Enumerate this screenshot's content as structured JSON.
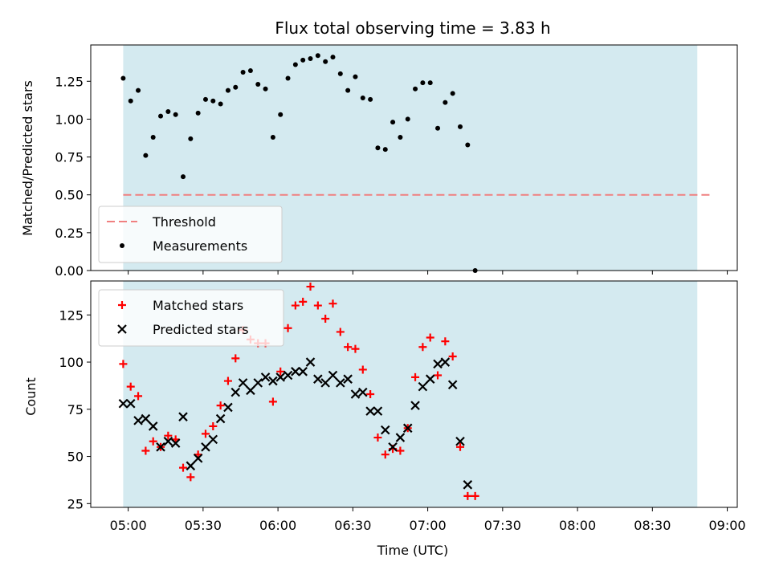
{
  "chart_data": [
    {
      "type": "scatter",
      "title": "Flux total observing time = 3.83 h",
      "xlabel": "",
      "ylabel": "Matched/Predicted stars",
      "x_axis": "time (UTC)",
      "xlim": [
        "04:45",
        "09:04"
      ],
      "ylim": [
        0,
        1.49
      ],
      "yticks": [
        0.0,
        0.25,
        0.5,
        0.75,
        1.0,
        1.25
      ],
      "ytick_labels": [
        "0.00",
        "0.25",
        "0.50",
        "0.75",
        "1.00",
        "1.25"
      ],
      "shaded_span": {
        "start": "04:58",
        "end": "08:48",
        "color": "#d4eaf0"
      },
      "threshold": {
        "name": "Threshold",
        "value": 0.5,
        "x_start": "04:58",
        "x_end": "08:53",
        "color": "#f08080"
      },
      "legend": {
        "placement": "lower-left",
        "entries": [
          "Threshold",
          "Measurements"
        ]
      },
      "series": [
        {
          "name": "Measurements",
          "marker": "dot",
          "color": "#000000",
          "points": [
            [
              "04:58",
              1.27
            ],
            [
              "05:01",
              1.12
            ],
            [
              "05:04",
              1.19
            ],
            [
              "05:07",
              0.76
            ],
            [
              "05:10",
              0.88
            ],
            [
              "05:13",
              1.02
            ],
            [
              "05:16",
              1.05
            ],
            [
              "05:19",
              1.03
            ],
            [
              "05:22",
              0.62
            ],
            [
              "05:25",
              0.87
            ],
            [
              "05:28",
              1.04
            ],
            [
              "05:31",
              1.13
            ],
            [
              "05:34",
              1.12
            ],
            [
              "05:37",
              1.1
            ],
            [
              "05:40",
              1.19
            ],
            [
              "05:43",
              1.21
            ],
            [
              "05:46",
              1.31
            ],
            [
              "05:49",
              1.32
            ],
            [
              "05:52",
              1.23
            ],
            [
              "05:55",
              1.2
            ],
            [
              "05:58",
              0.88
            ],
            [
              "06:01",
              1.03
            ],
            [
              "06:04",
              1.27
            ],
            [
              "06:07",
              1.36
            ],
            [
              "06:10",
              1.39
            ],
            [
              "06:13",
              1.4
            ],
            [
              "06:16",
              1.42
            ],
            [
              "06:19",
              1.38
            ],
            [
              "06:22",
              1.41
            ],
            [
              "06:25",
              1.3
            ],
            [
              "06:28",
              1.19
            ],
            [
              "06:31",
              1.28
            ],
            [
              "06:34",
              1.14
            ],
            [
              "06:37",
              1.13
            ],
            [
              "06:40",
              0.81
            ],
            [
              "06:43",
              0.8
            ],
            [
              "06:46",
              0.98
            ],
            [
              "06:49",
              0.88
            ],
            [
              "06:52",
              1.0
            ],
            [
              "06:55",
              1.2
            ],
            [
              "06:58",
              1.24
            ],
            [
              "07:01",
              1.24
            ],
            [
              "07:04",
              0.94
            ],
            [
              "07:07",
              1.11
            ],
            [
              "07:10",
              1.17
            ],
            [
              "07:13",
              0.95
            ],
            [
              "07:16",
              0.83
            ],
            [
              "07:19",
              0.0
            ]
          ]
        }
      ]
    },
    {
      "type": "scatter",
      "title": "",
      "xlabel": "Time (UTC)",
      "ylabel": "Count",
      "x_axis": "time (UTC)",
      "xlim": [
        "04:45",
        "09:04"
      ],
      "ylim": [
        23,
        143
      ],
      "yticks": [
        25,
        50,
        75,
        100,
        125
      ],
      "ytick_labels": [
        "25",
        "50",
        "75",
        "100",
        "125"
      ],
      "xticks": [
        "05:00",
        "05:30",
        "06:00",
        "06:30",
        "07:00",
        "07:30",
        "08:00",
        "08:30",
        "09:00"
      ],
      "xtick_labels": [
        "05:00",
        "05:30",
        "06:00",
        "06:30",
        "07:00",
        "07:30",
        "08:00",
        "08:30",
        "09:00"
      ],
      "shaded_span": {
        "start": "04:58",
        "end": "08:48",
        "color": "#d4eaf0"
      },
      "legend": {
        "placement": "upper-left",
        "entries": [
          "Matched stars",
          "Predicted stars"
        ]
      },
      "series": [
        {
          "name": "Matched stars",
          "marker": "plus",
          "color": "#ff0000",
          "points": [
            [
              "04:58",
              99
            ],
            [
              "05:01",
              87
            ],
            [
              "05:04",
              82
            ],
            [
              "05:07",
              53
            ],
            [
              "05:10",
              58
            ],
            [
              "05:13",
              55
            ],
            [
              "05:16",
              61
            ],
            [
              "05:19",
              59
            ],
            [
              "05:22",
              44
            ],
            [
              "05:25",
              39
            ],
            [
              "05:28",
              51
            ],
            [
              "05:31",
              62
            ],
            [
              "05:34",
              66
            ],
            [
              "05:37",
              77
            ],
            [
              "05:40",
              90
            ],
            [
              "05:43",
              102
            ],
            [
              "05:46",
              117
            ],
            [
              "05:49",
              112
            ],
            [
              "05:52",
              110
            ],
            [
              "05:55",
              110
            ],
            [
              "05:58",
              79
            ],
            [
              "06:01",
              95
            ],
            [
              "06:04",
              118
            ],
            [
              "06:07",
              130
            ],
            [
              "06:10",
              132
            ],
            [
              "06:13",
              140
            ],
            [
              "06:16",
              130
            ],
            [
              "06:19",
              123
            ],
            [
              "06:22",
              131
            ],
            [
              "06:25",
              116
            ],
            [
              "06:28",
              108
            ],
            [
              "06:31",
              107
            ],
            [
              "06:34",
              96
            ],
            [
              "06:37",
              83
            ],
            [
              "06:40",
              60
            ],
            [
              "06:43",
              51
            ],
            [
              "06:46",
              54
            ],
            [
              "06:49",
              53
            ],
            [
              "06:52",
              65
            ],
            [
              "06:55",
              92
            ],
            [
              "06:58",
              108
            ],
            [
              "07:01",
              113
            ],
            [
              "07:04",
              93
            ],
            [
              "07:07",
              111
            ],
            [
              "07:10",
              103
            ],
            [
              "07:13",
              55
            ],
            [
              "07:16",
              29
            ],
            [
              "07:19",
              29
            ]
          ]
        },
        {
          "name": "Predicted stars",
          "marker": "x",
          "color": "#000000",
          "points": [
            [
              "04:58",
              78
            ],
            [
              "05:01",
              78
            ],
            [
              "05:04",
              69
            ],
            [
              "05:07",
              70
            ],
            [
              "05:10",
              66
            ],
            [
              "05:13",
              55
            ],
            [
              "05:16",
              58
            ],
            [
              "05:19",
              57
            ],
            [
              "05:22",
              71
            ],
            [
              "05:25",
              45
            ],
            [
              "05:28",
              49
            ],
            [
              "05:31",
              55
            ],
            [
              "05:34",
              59
            ],
            [
              "05:37",
              70
            ],
            [
              "05:40",
              76
            ],
            [
              "05:43",
              84
            ],
            [
              "05:46",
              89
            ],
            [
              "05:49",
              85
            ],
            [
              "05:52",
              89
            ],
            [
              "05:55",
              92
            ],
            [
              "05:58",
              90
            ],
            [
              "06:01",
              92
            ],
            [
              "06:04",
              93
            ],
            [
              "06:07",
              95
            ],
            [
              "06:10",
              95
            ],
            [
              "06:13",
              100
            ],
            [
              "06:16",
              91
            ],
            [
              "06:19",
              89
            ],
            [
              "06:22",
              93
            ],
            [
              "06:25",
              89
            ],
            [
              "06:28",
              91
            ],
            [
              "06:31",
              83
            ],
            [
              "06:34",
              84
            ],
            [
              "06:37",
              74
            ],
            [
              "06:40",
              74
            ],
            [
              "06:43",
              64
            ],
            [
              "06:46",
              55
            ],
            [
              "06:49",
              60
            ],
            [
              "06:52",
              65
            ],
            [
              "06:55",
              77
            ],
            [
              "06:58",
              87
            ],
            [
              "07:01",
              91
            ],
            [
              "07:04",
              99
            ],
            [
              "07:07",
              100
            ],
            [
              "07:10",
              88
            ],
            [
              "07:13",
              58
            ],
            [
              "07:16",
              35
            ]
          ]
        }
      ]
    }
  ]
}
